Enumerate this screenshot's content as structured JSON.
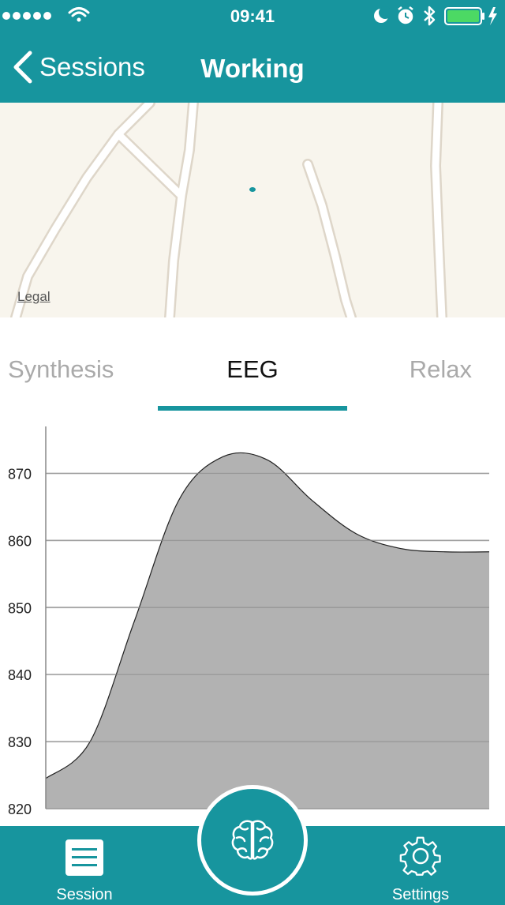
{
  "status_bar": {
    "time": "09:41",
    "icons": [
      "signal-dots-icon",
      "wifi-icon",
      "moon-icon",
      "alarm-icon",
      "bluetooth-icon",
      "battery-icon",
      "charging-icon"
    ]
  },
  "nav": {
    "back_label": "Sessions",
    "title": "Working"
  },
  "map": {
    "legal_label": "Legal"
  },
  "tabs": [
    {
      "label": "Synthesis",
      "active": false
    },
    {
      "label": "EEG",
      "active": true
    },
    {
      "label": "Relax",
      "active": false
    }
  ],
  "chart_data": {
    "type": "area",
    "title": "",
    "xlabel": "",
    "ylabel": "",
    "ylim": [
      820,
      877
    ],
    "yticks": [
      820,
      830,
      840,
      850,
      860,
      870
    ],
    "grid": true,
    "series": [
      {
        "x": [
          0,
          0.1,
          0.2,
          0.3,
          0.4,
          0.5,
          0.6,
          0.7,
          0.8,
          0.9,
          1.0
        ],
        "values": [
          824.5,
          830,
          848,
          866,
          872.5,
          872,
          866,
          861,
          858.8,
          858.3,
          858.3
        ]
      }
    ]
  },
  "tabbar": {
    "left_label": "Session",
    "right_label": "Settings",
    "icons": [
      "session-list-icon",
      "brain-icon",
      "gear-icon"
    ]
  }
}
